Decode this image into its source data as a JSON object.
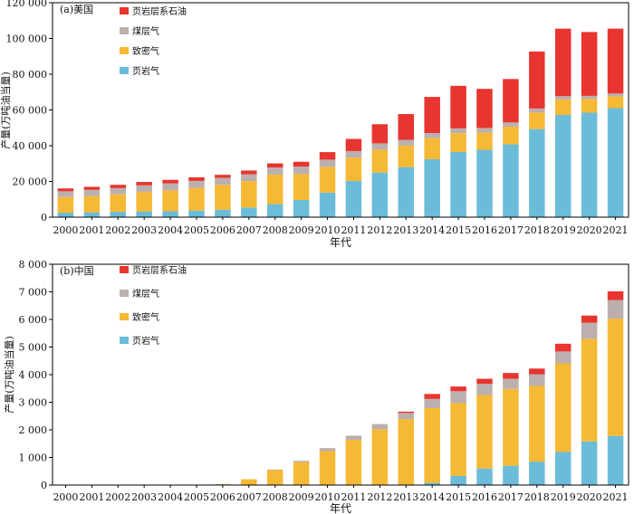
{
  "chart_data": [
    {
      "type": "bar",
      "stacked": true,
      "panel_label": "(a)美国",
      "xlabel": "年代",
      "ylabel": "产量(万吨油当量)",
      "ylim": [
        0,
        120000
      ],
      "yticks": [
        0,
        20000,
        40000,
        60000,
        80000,
        100000,
        120000
      ],
      "ytick_labels": [
        "0",
        "20 000",
        "40 000",
        "60 000",
        "80 000",
        "100 000",
        "120 000"
      ],
      "grid": false,
      "legend_position": "top-left",
      "categories": [
        "2000",
        "2001",
        "2002",
        "2003",
        "2004",
        "2005",
        "2006",
        "2007",
        "2008",
        "2009",
        "2010",
        "2011",
        "2012",
        "2013",
        "2014",
        "2015",
        "2016",
        "2017",
        "2018",
        "2019",
        "2020",
        "2021"
      ],
      "series": [
        {
          "name": "页岩气",
          "color": "#6BBCD8",
          "values": [
            2500,
            2700,
            3000,
            3200,
            3300,
            3700,
            4200,
            5400,
            7300,
            9600,
            13800,
            20300,
            25000,
            28000,
            32400,
            36500,
            37700,
            40800,
            49300,
            57200,
            58500,
            61000
          ]
        },
        {
          "name": "致密气",
          "color": "#F6B935",
          "values": [
            8800,
            9100,
            9800,
            10900,
            11700,
            12700,
            13900,
            14800,
            16500,
            14500,
            14400,
            13000,
            12800,
            12000,
            11800,
            10500,
            9700,
            9800,
            9300,
            8600,
            7700,
            6700
          ]
        },
        {
          "name": "煤层气",
          "color": "#BBB0AE",
          "values": [
            3200,
            3500,
            3500,
            3700,
            3900,
            3900,
            3900,
            3800,
            4000,
            4200,
            4000,
            3700,
            3500,
            3300,
            2900,
            2700,
            2500,
            2400,
            2200,
            1900,
            1700,
            1500
          ]
        },
        {
          "name": "页岩层系石油",
          "color": "#E8352F",
          "values": [
            1600,
            1700,
            1800,
            1900,
            2000,
            2000,
            1700,
            2100,
            2300,
            2700,
            4200,
            6800,
            10700,
            14400,
            20200,
            23800,
            21900,
            24300,
            31900,
            37800,
            35700,
            36300
          ]
        }
      ]
    },
    {
      "type": "bar",
      "stacked": true,
      "panel_label": "(b)中国",
      "xlabel": "年代",
      "ylabel": "产量(万吨油当量)",
      "ylim": [
        0,
        8000
      ],
      "yticks": [
        0,
        1000,
        2000,
        3000,
        4000,
        5000,
        6000,
        7000,
        8000
      ],
      "ytick_labels": [
        "0",
        "1 000",
        "2 000",
        "3 000",
        "4 000",
        "5 000",
        "6 000",
        "7 000",
        "8 000"
      ],
      "grid": false,
      "legend_position": "top-left",
      "categories": [
        "2000",
        "2001",
        "2002",
        "2003",
        "2004",
        "2005",
        "2006",
        "2007",
        "2008",
        "2009",
        "2010",
        "2011",
        "2012",
        "2013",
        "2014",
        "2015",
        "2016",
        "2017",
        "2018",
        "2019",
        "2020",
        "2021"
      ],
      "series": [
        {
          "name": "页岩气",
          "color": "#6BBCD8",
          "values": [
            0,
            0,
            0,
            0,
            0,
            0,
            0,
            0,
            0,
            0,
            0,
            0,
            0,
            0,
            80,
            330,
            600,
            700,
            850,
            1200,
            1580,
            1780
          ]
        },
        {
          "name": "致密气",
          "color": "#F6B935",
          "values": [
            0,
            0,
            0,
            0,
            0,
            0,
            30,
            210,
            540,
            830,
            1230,
            1640,
            2020,
            2390,
            2710,
            2640,
            2660,
            2780,
            2740,
            3210,
            3720,
            4250
          ]
        },
        {
          "name": "煤层气",
          "color": "#BBB0AE",
          "values": [
            0,
            0,
            0,
            0,
            0,
            0,
            0,
            0,
            20,
            50,
            110,
            150,
            190,
            220,
            330,
            430,
            410,
            370,
            420,
            430,
            580,
            670
          ]
        },
        {
          "name": "页岩层系石油",
          "color": "#E8352F",
          "values": [
            0,
            0,
            0,
            0,
            0,
            0,
            0,
            0,
            0,
            0,
            0,
            0,
            0,
            50,
            180,
            170,
            180,
            210,
            210,
            280,
            260,
            320
          ]
        }
      ]
    }
  ]
}
